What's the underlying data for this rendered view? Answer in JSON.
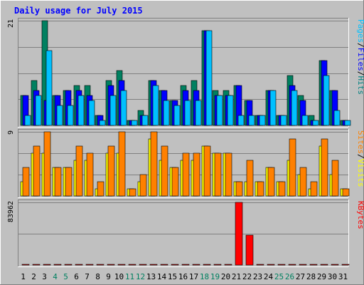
{
  "chart_data": {
    "type": "bar",
    "title": "Daily usage for July 2015",
    "categories": [
      "1",
      "2",
      "3",
      "4",
      "5",
      "6",
      "7",
      "8",
      "9",
      "10",
      "11",
      "12",
      "13",
      "14",
      "15",
      "16",
      "17",
      "18",
      "19",
      "20",
      "21",
      "22",
      "23",
      "24",
      "25",
      "26",
      "27",
      "28",
      "29",
      "30",
      "31"
    ],
    "weekend_days": [
      4,
      5,
      11,
      12,
      18,
      19,
      25,
      26
    ],
    "panels": [
      {
        "id": "top",
        "ylabel_parts": [
          {
            "text": "Pages",
            "color": "#00c0ff"
          },
          {
            "text": "/",
            "color": "#000000"
          },
          {
            "text": "Files",
            "color": "#0000ff"
          },
          {
            "text": "/",
            "color": "#000000"
          },
          {
            "text": "Hits",
            "color": "#008080"
          }
        ],
        "ymax_label": "21",
        "ylim": [
          0,
          21
        ],
        "series": [
          {
            "name": "Hits",
            "color": "#008060",
            "values": [
              6,
              9,
              21,
              6,
              7,
              8,
              8,
              2,
              9,
              11,
              1,
              3,
              9,
              7,
              5,
              8,
              9,
              19,
              7,
              7,
              8,
              5,
              2,
              7,
              2,
              10,
              6,
              2,
              13,
              7,
              1
            ]
          },
          {
            "name": "Files",
            "color": "#0000ff",
            "values": [
              6,
              7,
              5,
              6,
              7,
              7,
              6,
              2,
              8,
              9,
              1,
              2,
              9,
              7,
              5,
              7,
              7,
              19,
              6,
              6,
              8,
              5,
              2,
              7,
              2,
              8,
              5,
              1,
              13,
              7,
              1
            ]
          },
          {
            "name": "Pages",
            "color": "#00c0ff",
            "values": [
              2,
              6,
              15,
              4,
              4,
              6,
              5,
              1,
              6,
              7,
              1,
              2,
              8,
              5,
              4,
              5,
              5,
              19,
              6,
              6,
              2,
              2,
              2,
              7,
              2,
              7,
              2,
              1,
              10,
              3,
              1
            ]
          }
        ]
      },
      {
        "id": "middle",
        "ylabel_parts": [
          {
            "text": "Sites",
            "color": "#ff8000"
          },
          {
            "text": "/",
            "color": "#000000"
          },
          {
            "text": "Visits",
            "color": "#ffff00"
          }
        ],
        "ymax_label": "9",
        "ylim": [
          0,
          9
        ],
        "series": [
          {
            "name": "Visits",
            "color": "#ffff00",
            "values": [
              2,
              6,
              6,
              4,
              4,
              5,
              5,
              1,
              6,
              6,
              1,
              2,
              8,
              5,
              4,
              5,
              5,
              7,
              6,
              6,
              2,
              2,
              2,
              4,
              2,
              5,
              3,
              1,
              7,
              3,
              1
            ]
          },
          {
            "name": "Sites",
            "color": "#ff8000",
            "values": [
              4,
              7,
              9,
              4,
              4,
              7,
              6,
              2,
              7,
              9,
              1,
              3,
              9,
              7,
              4,
              6,
              6,
              7,
              6,
              6,
              2,
              5,
              2,
              4,
              2,
              8,
              4,
              2,
              8,
              5,
              1
            ]
          }
        ]
      },
      {
        "id": "bottom",
        "ylabel_parts": [
          {
            "text": "KBytes",
            "color": "#ff0000"
          }
        ],
        "ymax_label": "83962",
        "ylim": [
          0,
          83962
        ],
        "series": [
          {
            "name": "KBytes",
            "color": "#ff0000",
            "values": [
              0,
              0,
              0,
              0,
              0,
              0,
              0,
              0,
              0,
              0,
              0,
              0,
              0,
              0,
              0,
              0,
              0,
              0,
              0,
              0,
              83962,
              40000,
              0,
              0,
              0,
              0,
              0,
              0,
              0,
              0,
              0
            ]
          }
        ]
      }
    ],
    "grid": true,
    "colors": {
      "background": "#c0c0c0",
      "plot_background": "#c0c0c0",
      "border_light": "#ffffff",
      "border_dark": "#808080",
      "title": "#0000ff",
      "axis_text": "#000000",
      "weekend_text": "#008060",
      "gridline": "#808080"
    }
  }
}
